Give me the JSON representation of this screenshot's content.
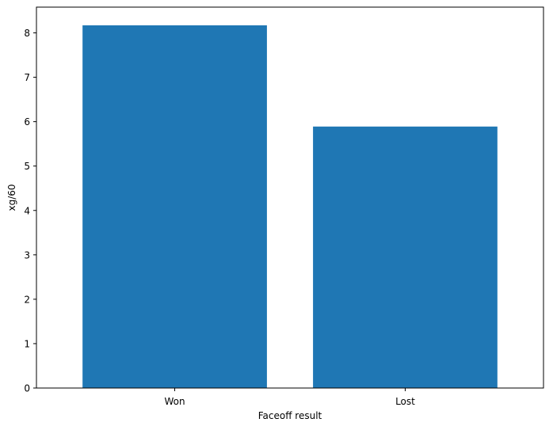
{
  "chart_data": {
    "type": "bar",
    "title": "",
    "xlabel": "Faceoff result",
    "ylabel": "xg/60",
    "categories": [
      "Won",
      "Lost"
    ],
    "values": [
      8.17,
      5.89
    ],
    "ylim": [
      0,
      8.58
    ],
    "yticks": [
      0,
      1,
      2,
      3,
      4,
      5,
      6,
      7,
      8
    ],
    "grid": false,
    "legend": "none",
    "bar_color": "#1f77b4"
  }
}
